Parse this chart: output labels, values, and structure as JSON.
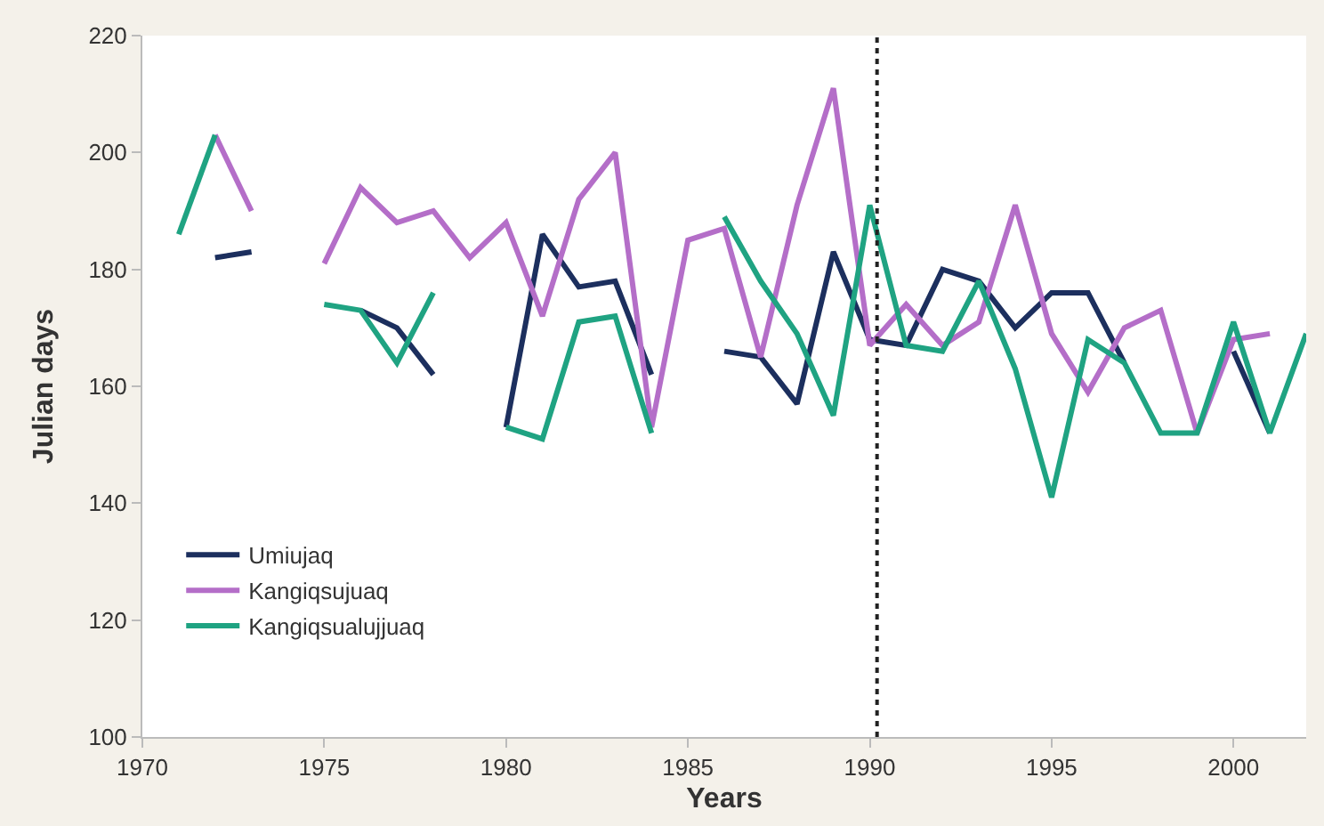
{
  "chart_data": {
    "type": "line",
    "xlabel": "Years",
    "ylabel": "Julian days",
    "x": [
      1971,
      1972,
      1973,
      1974,
      1975,
      1976,
      1977,
      1978,
      1979,
      1980,
      1981,
      1982,
      1983,
      1984,
      1985,
      1986,
      1987,
      1988,
      1989,
      1990,
      1991,
      1992,
      1993,
      1994,
      1995,
      1996,
      1997,
      1998,
      1999,
      2000,
      2001,
      2002
    ],
    "series": [
      {
        "name": "Umiujaq",
        "color": "#1c2f5e",
        "values": [
          null,
          182,
          183,
          null,
          null,
          173,
          170,
          162,
          null,
          153,
          186,
          177,
          178,
          162,
          null,
          166,
          165,
          157,
          183,
          168,
          167,
          180,
          178,
          170,
          176,
          176,
          164,
          null,
          null,
          166,
          152,
          null
        ]
      },
      {
        "name": "Kangiqsujuaq",
        "color": "#b46ec8",
        "values": [
          null,
          203,
          190,
          null,
          181,
          194,
          188,
          190,
          182,
          188,
          172,
          192,
          200,
          153,
          185,
          187,
          165,
          191,
          211,
          167,
          174,
          167,
          171,
          191,
          169,
          159,
          170,
          173,
          152,
          168,
          169,
          null
        ]
      },
      {
        "name": "Kangiqsualujjuaq",
        "color": "#1fa382",
        "values": [
          186,
          203,
          null,
          null,
          174,
          173,
          164,
          176,
          null,
          153,
          151,
          171,
          172,
          152,
          null,
          189,
          178,
          169,
          155,
          191,
          167,
          166,
          178,
          163,
          141,
          168,
          164,
          152,
          152,
          171,
          152,
          169
        ]
      }
    ],
    "xlim": [
      1970,
      2002
    ],
    "xticks": [
      1970,
      1975,
      1980,
      1985,
      1990,
      1995,
      2000
    ],
    "ylim": [
      100,
      220
    ],
    "yticks": [
      100,
      120,
      140,
      160,
      180,
      200,
      220
    ],
    "ref_lines": [
      {
        "axis": "x",
        "value": 1990.2,
        "color": "#222222",
        "line_style": "dotted"
      }
    ],
    "legend": "bottom left",
    "line_style": "solid",
    "marker": "none"
  }
}
